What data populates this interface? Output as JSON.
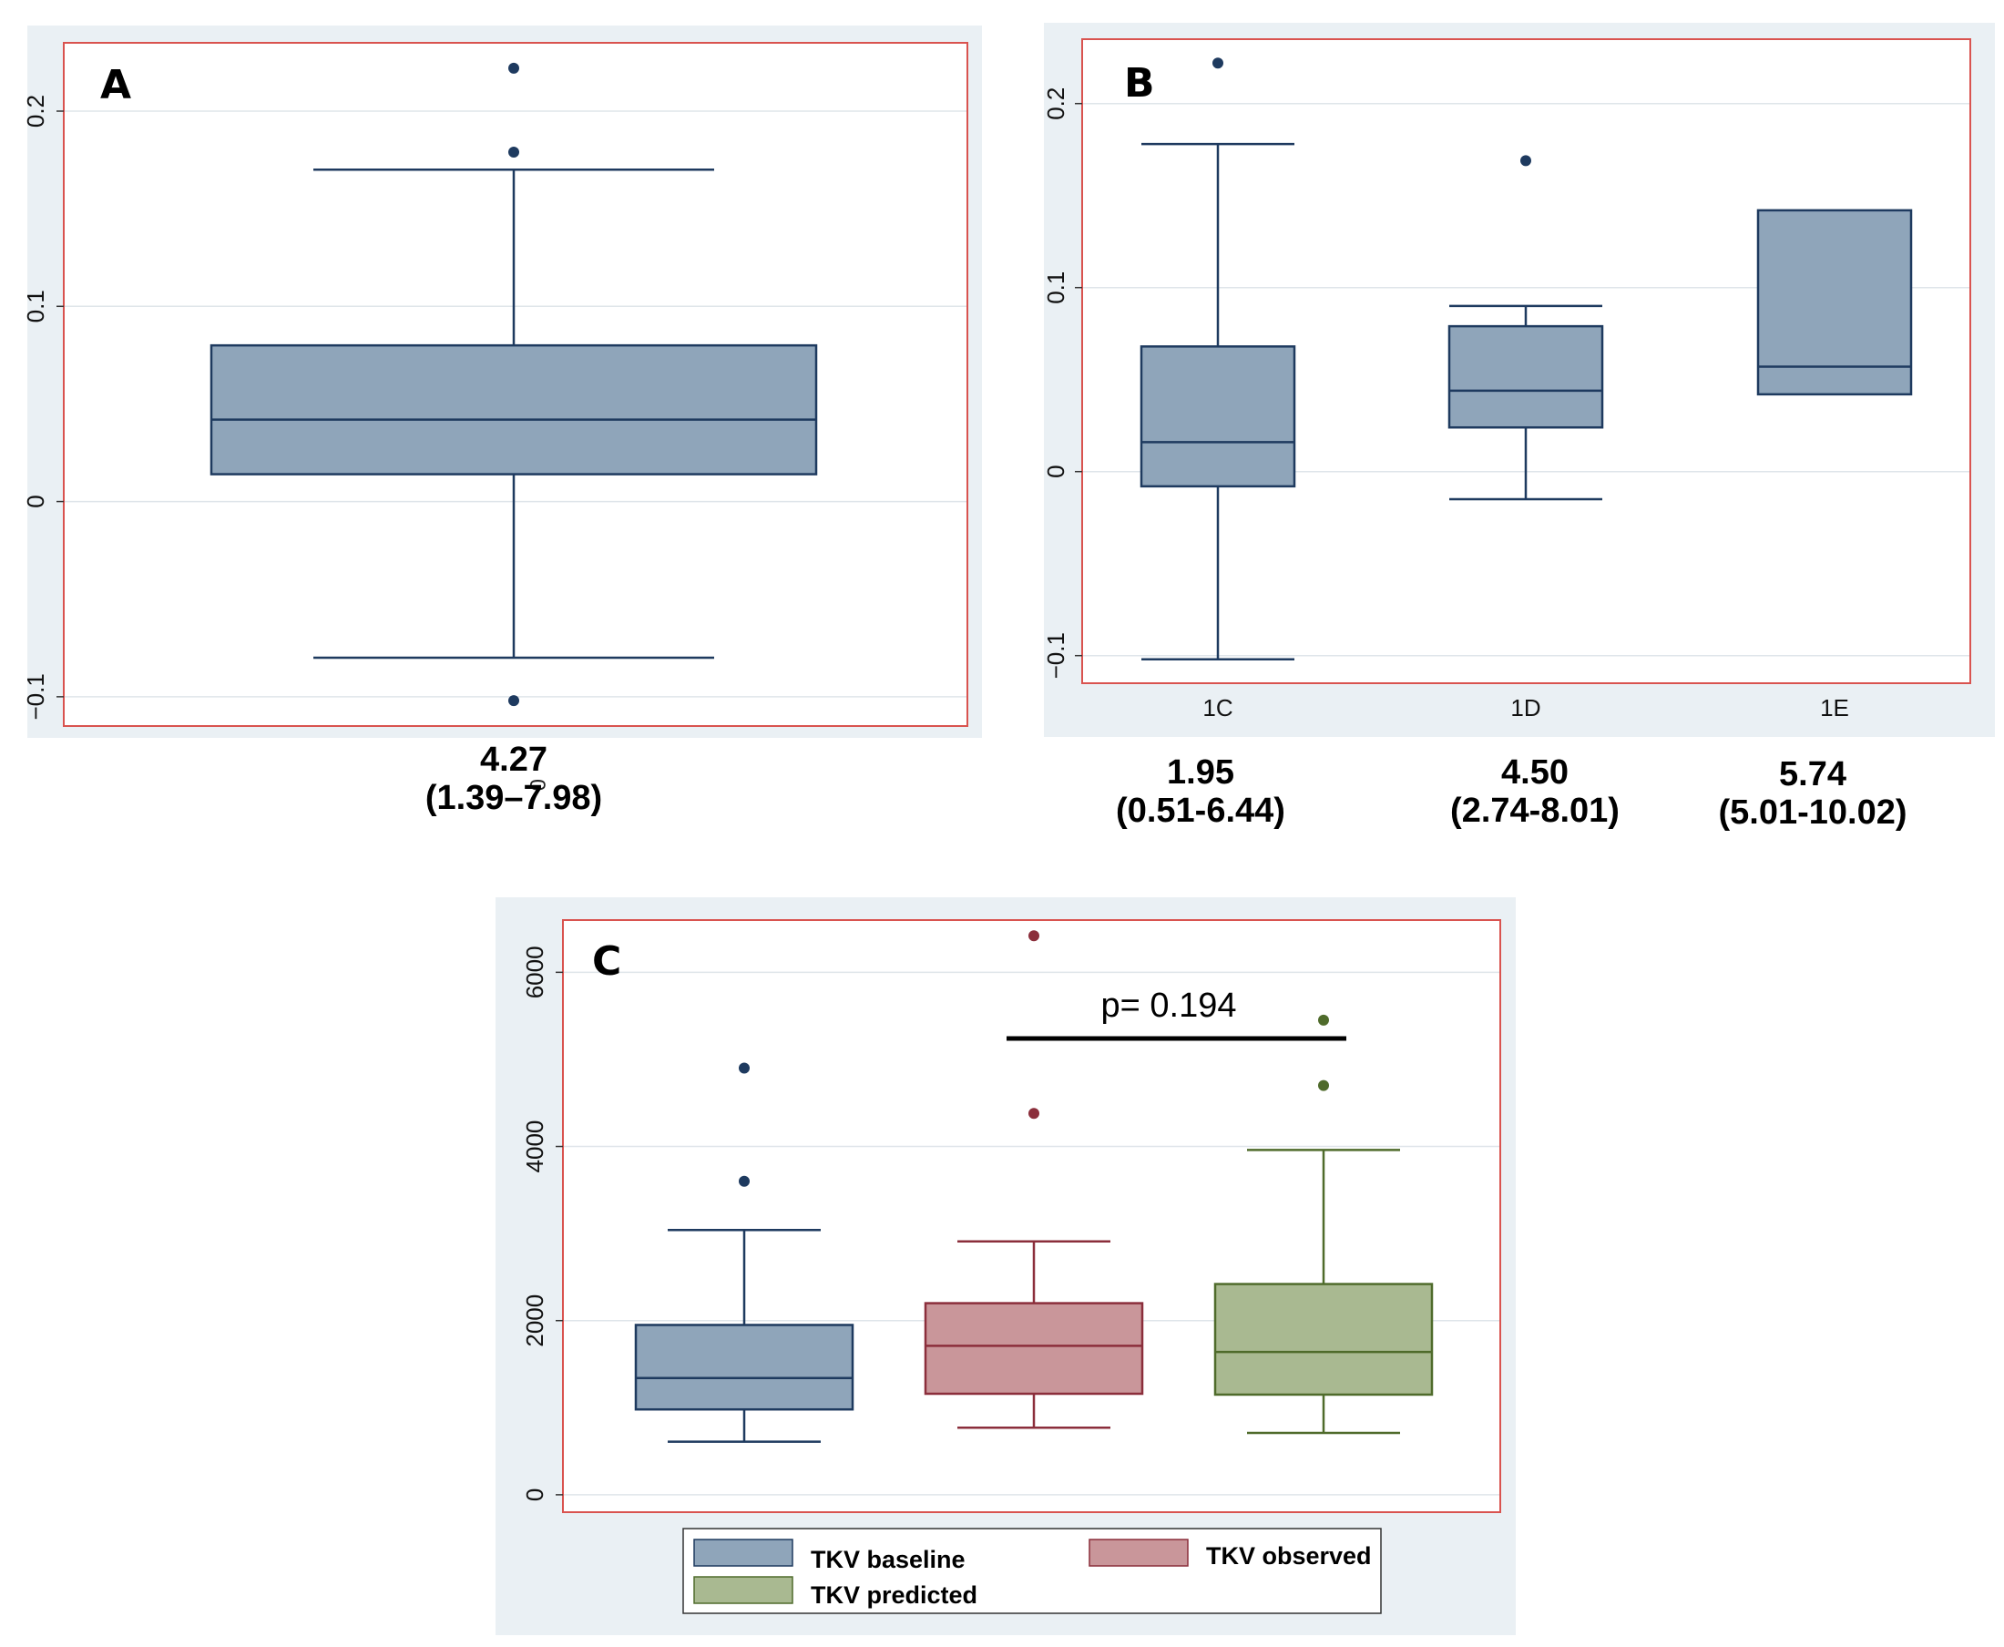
{
  "colors": {
    "panel_bg": "#eaf0f4",
    "plot_border": "#d9534f",
    "grid": "#dfe5ea",
    "baseline_fill": "#8fa5ba",
    "baseline_line": "#1e3a5f",
    "observed_fill": "#c9969a",
    "observed_line": "#8b2e3b",
    "predicted_fill": "#a9b991",
    "predicted_line": "#4f6b2b"
  },
  "chart_data": [
    {
      "panel": "A",
      "type": "box",
      "ylim": [
        -0.115,
        0.235
      ],
      "yticks": [
        -0.1,
        0,
        0.1,
        0.2
      ],
      "ytick_labels": [
        "−0.1",
        "0",
        "0.1",
        "0.2"
      ],
      "categories": [
        ""
      ],
      "boxes": [
        {
          "q1": 0.014,
          "median": 0.042,
          "q3": 0.08,
          "whisker_low": -0.08,
          "whisker_high": 0.17,
          "outliers": [
            0.222,
            0.179,
            -0.102
          ],
          "color": "baseline"
        }
      ],
      "annotations": {
        "small_zero_mark": "0"
      },
      "stats": [
        {
          "line1": "4.27",
          "line2": "(1.39–7.98)"
        }
      ]
    },
    {
      "panel": "B",
      "type": "box",
      "ylim": [
        -0.115,
        0.235
      ],
      "yticks": [
        -0.1,
        0,
        0.1,
        0.2
      ],
      "ytick_labels": [
        "−0.1",
        "0",
        "0.1",
        "0.2"
      ],
      "categories": [
        "1C",
        "1D",
        "1E"
      ],
      "boxes": [
        {
          "q1": -0.008,
          "median": 0.016,
          "q3": 0.068,
          "whisker_low": -0.102,
          "whisker_high": 0.178,
          "outliers": [
            0.222
          ],
          "color": "baseline"
        },
        {
          "q1": 0.024,
          "median": 0.044,
          "q3": 0.079,
          "whisker_low": -0.015,
          "whisker_high": 0.09,
          "outliers": [
            0.169
          ],
          "color": "baseline"
        },
        {
          "q1": 0.042,
          "median": 0.057,
          "q3": 0.142,
          "whisker_low": 0.042,
          "whisker_high": 0.142,
          "outliers": [],
          "color": "baseline"
        }
      ],
      "stats": [
        {
          "line1": "1.95",
          "line2": "(0.51-6.44)"
        },
        {
          "line1": "4.50",
          "line2": "(2.74-8.01)"
        },
        {
          "line1": "5.74",
          "line2": "(5.01-10.02)"
        }
      ]
    },
    {
      "panel": "C",
      "type": "box",
      "ylim": [
        -200,
        6600
      ],
      "yticks": [
        0,
        2000,
        4000,
        6000
      ],
      "ytick_labels": [
        "0",
        "2000",
        "4000",
        "6000"
      ],
      "categories": [
        "TKV baseline",
        "TKV observed",
        "TKV predicted"
      ],
      "boxes": [
        {
          "q1": 980,
          "median": 1340,
          "q3": 1950,
          "whisker_low": 610,
          "whisker_high": 3040,
          "outliers": [
            4900,
            3600
          ],
          "color": "baseline"
        },
        {
          "q1": 1160,
          "median": 1710,
          "q3": 2200,
          "whisker_low": 770,
          "whisker_high": 2910,
          "outliers": [
            6420,
            4380
          ],
          "color": "observed"
        },
        {
          "q1": 1150,
          "median": 1640,
          "q3": 2420,
          "whisker_low": 710,
          "whisker_high": 3960,
          "outliers": [
            5450,
            4700
          ],
          "color": "predicted"
        }
      ],
      "pvalue": {
        "text": "p= 0.194"
      },
      "legend": [
        {
          "label": "TKV baseline",
          "color": "baseline"
        },
        {
          "label": "TKV observed",
          "color": "observed"
        },
        {
          "label": "TKV predicted",
          "color": "predicted"
        }
      ]
    }
  ]
}
